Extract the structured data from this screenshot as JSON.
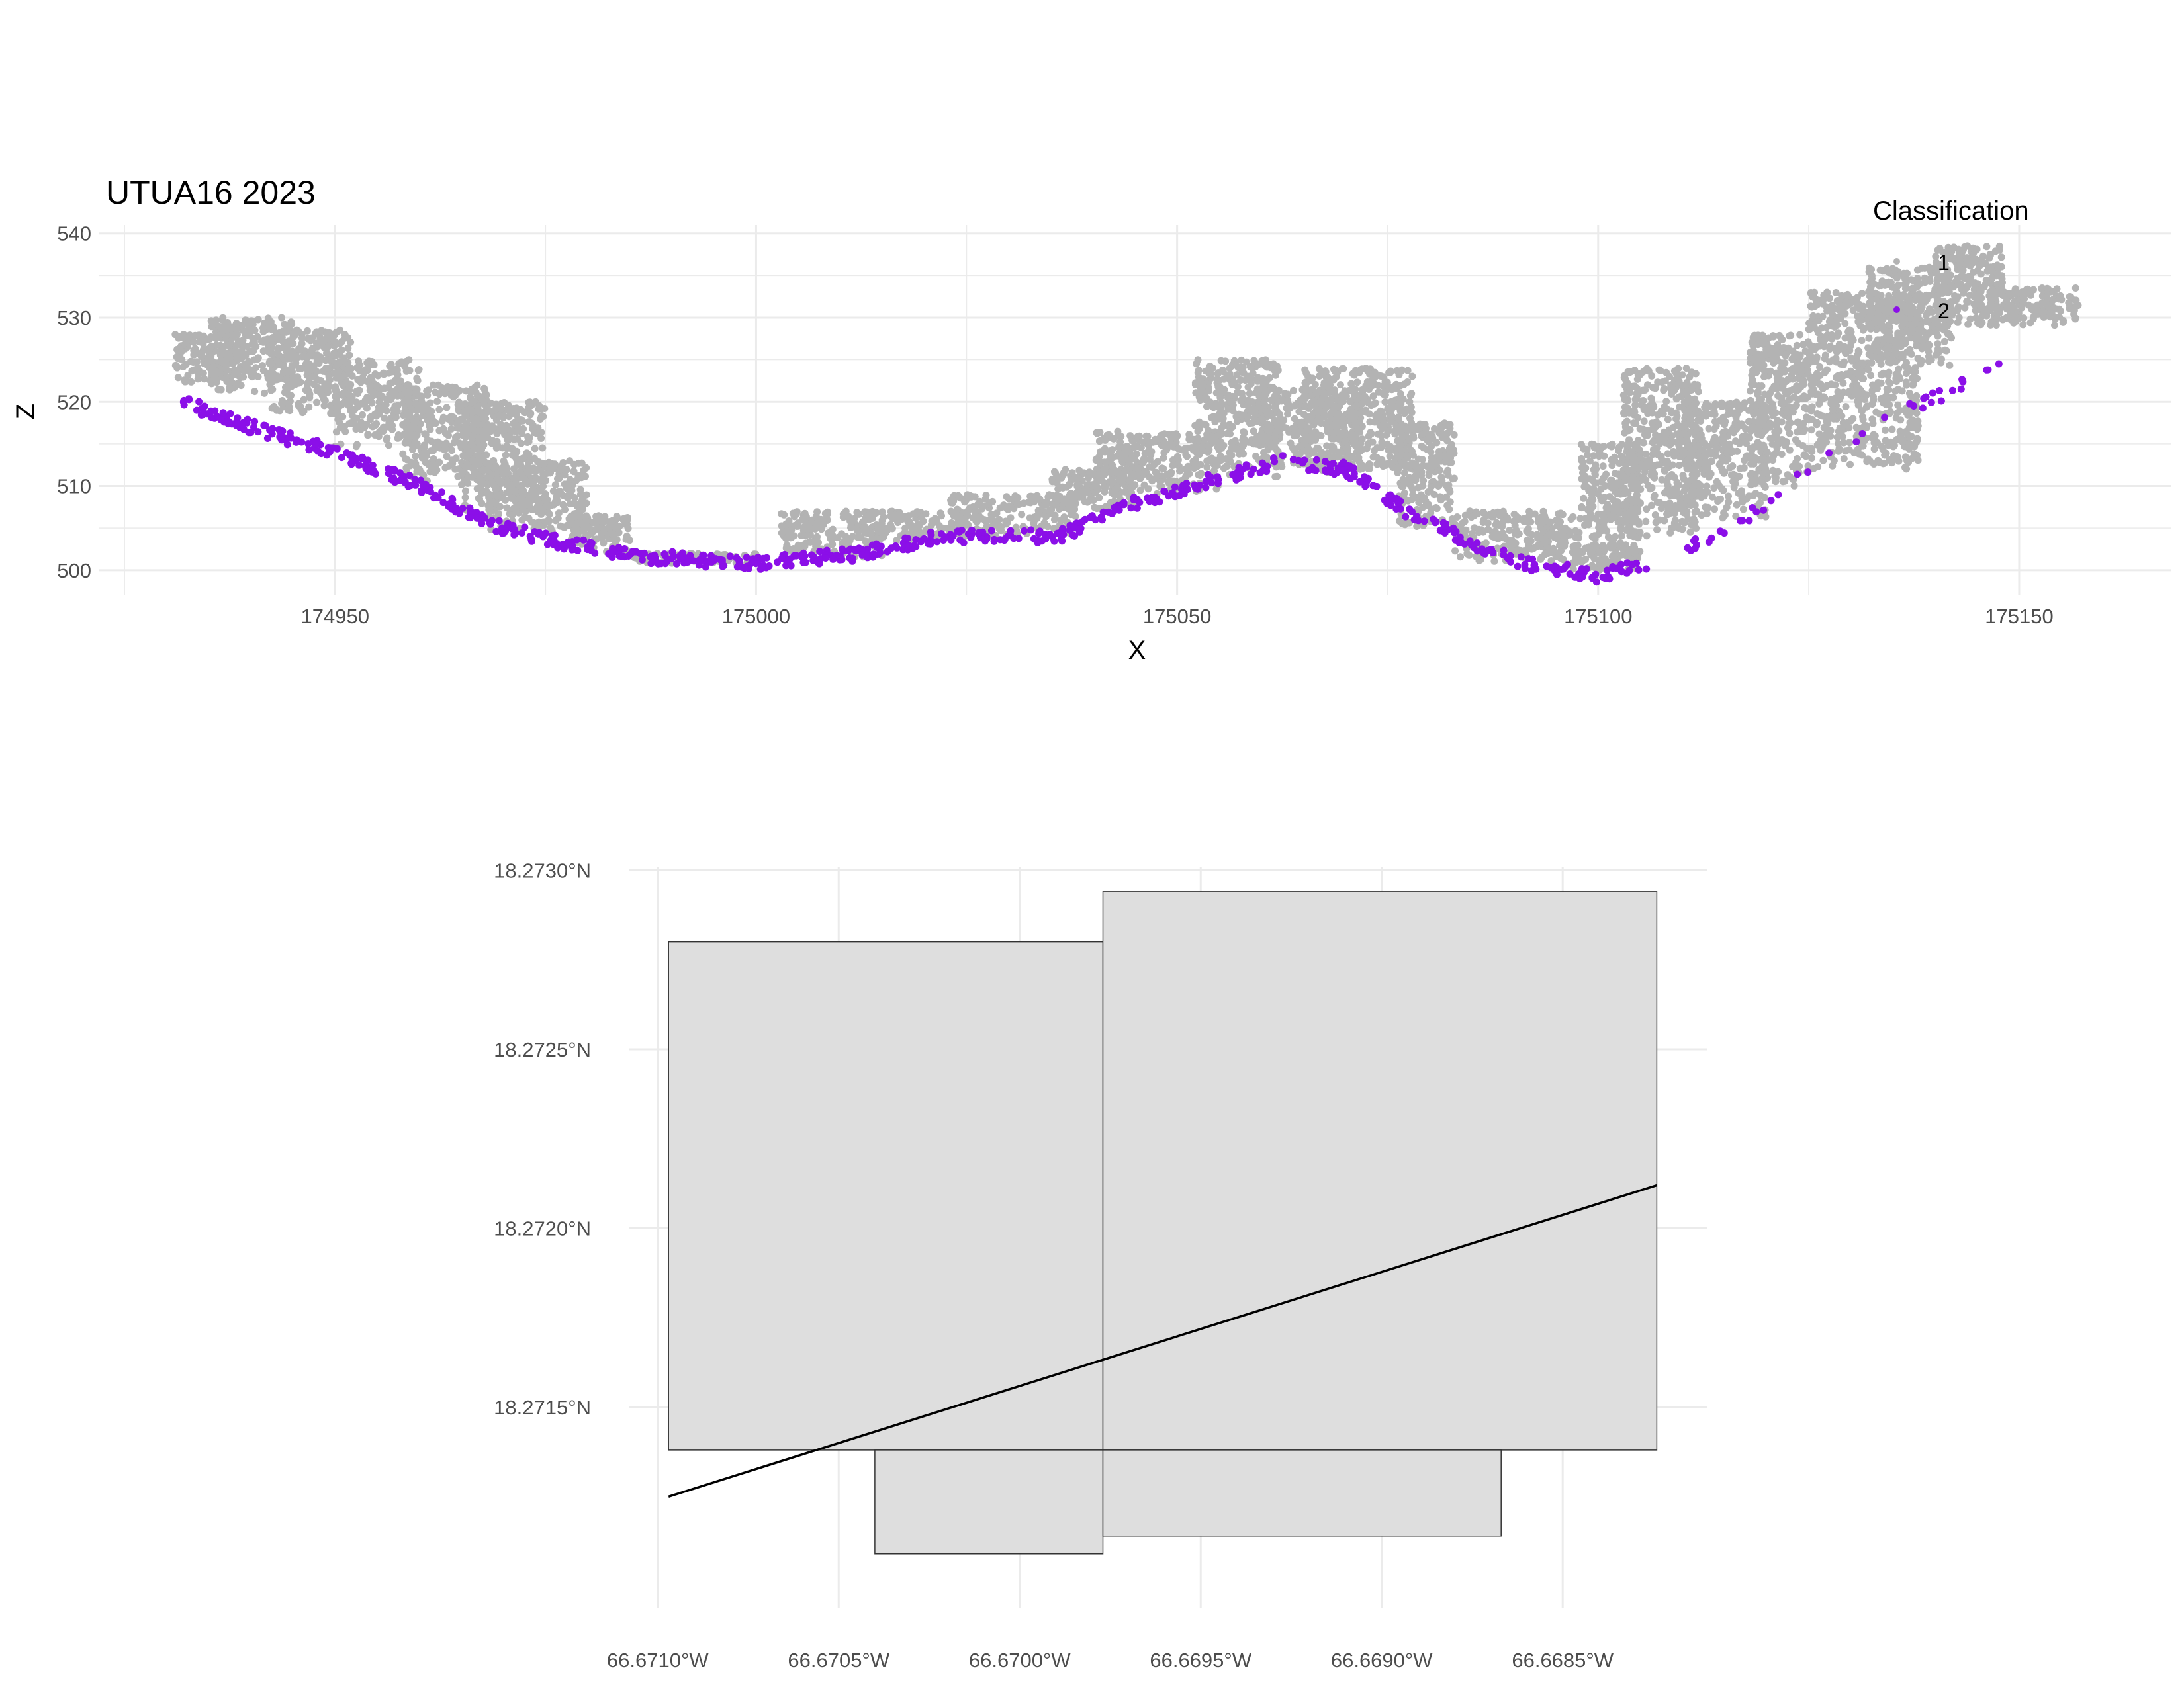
{
  "chart_data": [
    {
      "type": "scatter",
      "title": "UTUA16 2023",
      "xlabel": "X",
      "ylabel": "Z",
      "xlim": [
        174922,
        175168
      ],
      "ylim": [
        497,
        541
      ],
      "x_ticks": [
        174950,
        175000,
        175050,
        175100,
        175150
      ],
      "y_ticks": [
        500,
        510,
        520,
        530,
        540
      ],
      "x_tick_labels": [
        "174950",
        "175000",
        "175050",
        "175100",
        "175150"
      ],
      "y_tick_labels": [
        "500",
        "510",
        "520",
        "530",
        "540"
      ],
      "grid": true,
      "legend": {
        "title": "Classification",
        "position": "top-right",
        "entries": [
          {
            "label": "1",
            "color": "#b3b3b3"
          },
          {
            "label": "2",
            "color": "#8b0fe8"
          }
        ]
      },
      "ground_profile": [
        [
          174932,
          519.5
        ],
        [
          174940,
          516.5
        ],
        [
          174950,
          513.5
        ],
        [
          174960,
          509.5
        ],
        [
          174968,
          505.0
        ],
        [
          174975,
          503.2
        ],
        [
          174985,
          501.2
        ],
        [
          175000,
          500.3
        ],
        [
          175012,
          501.4
        ],
        [
          175022,
          503.5
        ],
        [
          175036,
          503.5
        ],
        [
          175045,
          507.5
        ],
        [
          175055,
          510.5
        ],
        [
          175063,
          512.5
        ],
        [
          175070,
          511.5
        ],
        [
          175078,
          506.0
        ],
        [
          175090,
          500.5
        ],
        [
          175100,
          498.8
        ],
        [
          175108,
          501.0
        ],
        [
          175118,
          506.0
        ],
        [
          175130,
          515.0
        ],
        [
          175150,
          525.0
        ]
      ],
      "series": [
        {
          "name": "1",
          "color": "#b3b3b3",
          "clusters": [
            [
              174931,
              174938,
              522.0,
              528.0
            ],
            [
              174935,
              174945,
              521.0,
              530.0
            ],
            [
              174942,
              174952,
              518.5,
              528.5
            ],
            [
              174950,
              174960,
              514.5,
              525.0
            ],
            [
              174958,
              174968,
              510.5,
              522.0
            ],
            [
              174965,
              174975,
              507.0,
              520.0
            ],
            [
              174968,
              174980,
              504.5,
              513.0
            ],
            [
              174978,
              174985,
              502.0,
              506.5
            ],
            [
              174985,
              175000,
              500.8,
              502.0
            ],
            [
              175003,
              175015,
              501.5,
              507.0
            ],
            [
              175012,
              175025,
              503.5,
              507.0
            ],
            [
              175023,
              175038,
              504.0,
              509.0
            ],
            [
              175035,
              175045,
              507.0,
              512.0
            ],
            [
              175040,
              175055,
              509.0,
              516.5
            ],
            [
              175052,
              175062,
              511.0,
              525.0
            ],
            [
              175060,
              175072,
              511.5,
              521.5
            ],
            [
              175065,
              175078,
              512.0,
              524.0
            ],
            [
              175076,
              175083,
              505.0,
              517.5
            ],
            [
              175083,
              175098,
              501.0,
              507.0
            ],
            [
              175097,
              175105,
              500.0,
              503.0
            ],
            [
              175098,
              175105,
              502.0,
              515.0
            ],
            [
              175103,
              175112,
              504.0,
              524.0
            ],
            [
              175110,
              175120,
              506.0,
              520.0
            ],
            [
              175118,
              175125,
              510.0,
              528.0
            ],
            [
              175125,
              175138,
              512.0,
              533.0
            ],
            [
              175132,
              175142,
              524.0,
              536.0
            ],
            [
              175140,
              175148,
              529.0,
              538.5
            ],
            [
              175145,
              175157,
              529.0,
              533.5
            ]
          ]
        },
        {
          "name": "2",
          "color": "#8b0fe8"
        }
      ]
    },
    {
      "type": "map",
      "x_ticks": [
        -66.671,
        -66.6705,
        -66.67,
        -66.6695,
        -66.669,
        -66.6685
      ],
      "x_tick_labels": [
        "66.6710°W",
        "66.6705°W",
        "66.6700°W",
        "66.6695°W",
        "66.6690°W",
        "66.6685°W"
      ],
      "y_ticks": [
        18.2715,
        18.272,
        18.2725,
        18.273
      ],
      "y_tick_labels": [
        "18.2715°N",
        "18.2720°N",
        "18.2725°N",
        "18.2730°N"
      ],
      "xlim": [
        -66.67108,
        -66.6681
      ],
      "ylim": [
        18.27094,
        18.27301
      ],
      "grid": true,
      "polygon_fill": "#dedede",
      "polygon_stroke": "#333333",
      "polygons": [
        [
          [
            -66.67097,
            18.2728
          ],
          [
            -66.66977,
            18.2728
          ],
          [
            -66.66977,
            18.27138
          ],
          [
            -66.67097,
            18.27138
          ]
        ],
        [
          [
            -66.66977,
            18.27294
          ],
          [
            -66.66824,
            18.27294
          ],
          [
            -66.66824,
            18.27138
          ],
          [
            -66.66977,
            18.27138
          ]
        ],
        [
          [
            -66.6704,
            18.27138
          ],
          [
            -66.66977,
            18.27138
          ],
          [
            -66.66977,
            18.27109
          ],
          [
            -66.6704,
            18.27109
          ]
        ],
        [
          [
            -66.66977,
            18.27138
          ],
          [
            -66.66867,
            18.27138
          ],
          [
            -66.66867,
            18.27114
          ],
          [
            -66.66977,
            18.27114
          ]
        ]
      ],
      "line": {
        "color": "#000000",
        "points": [
          [
            -66.67097,
            18.27125
          ],
          [
            -66.66824,
            18.27212
          ]
        ]
      }
    }
  ]
}
